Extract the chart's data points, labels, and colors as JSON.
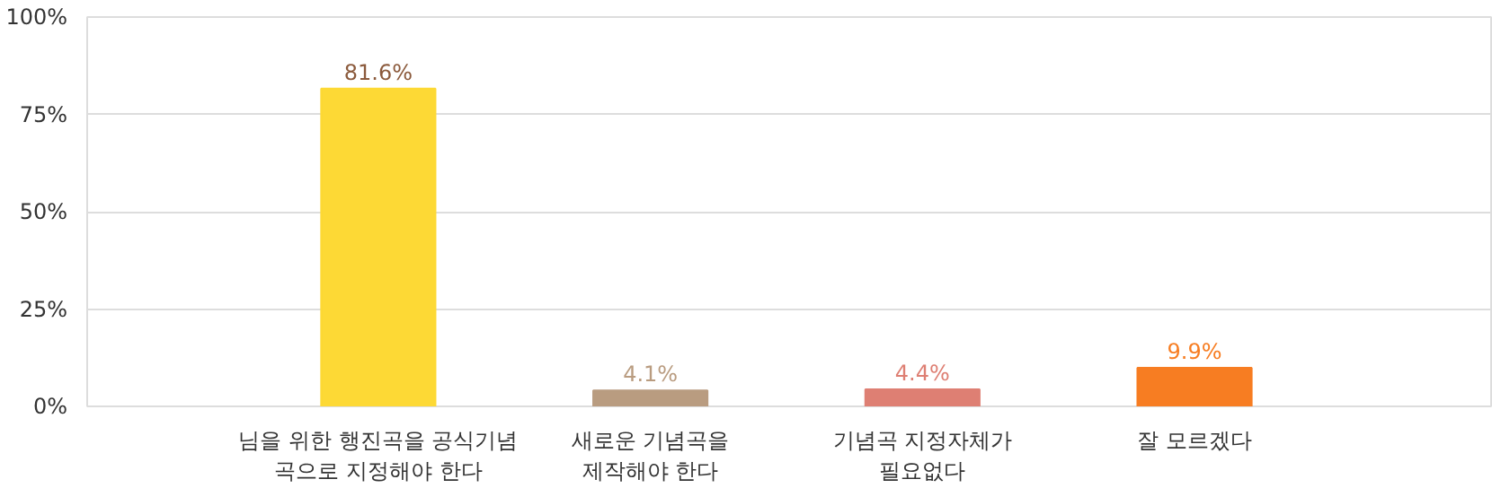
{
  "chart_data": {
    "type": "bar",
    "categories": [
      "님을 위한 행진곡을 공식기념\n곡으로 지정해야 한다",
      "새로운 기념곡을\n제작해야 한다",
      "기념곡 지정자체가\n필요없다",
      "잘 모르겠다"
    ],
    "values": [
      81.6,
      4.1,
      4.4,
      9.9
    ],
    "colors": [
      "#fdd935",
      "#b99c80",
      "#de7f73",
      "#f77d22"
    ],
    "value_labels": [
      "81.6%",
      "4.1%",
      "4.4%",
      "9.9%"
    ],
    "ylim": [
      0,
      100
    ],
    "yticks": [
      {
        "value": 0,
        "label": "0%"
      },
      {
        "value": 25,
        "label": "25%"
      },
      {
        "value": 50,
        "label": "50%"
      },
      {
        "value": 75,
        "label": "75%"
      },
      {
        "value": 100,
        "label": "100%"
      }
    ],
    "grid": "y"
  }
}
